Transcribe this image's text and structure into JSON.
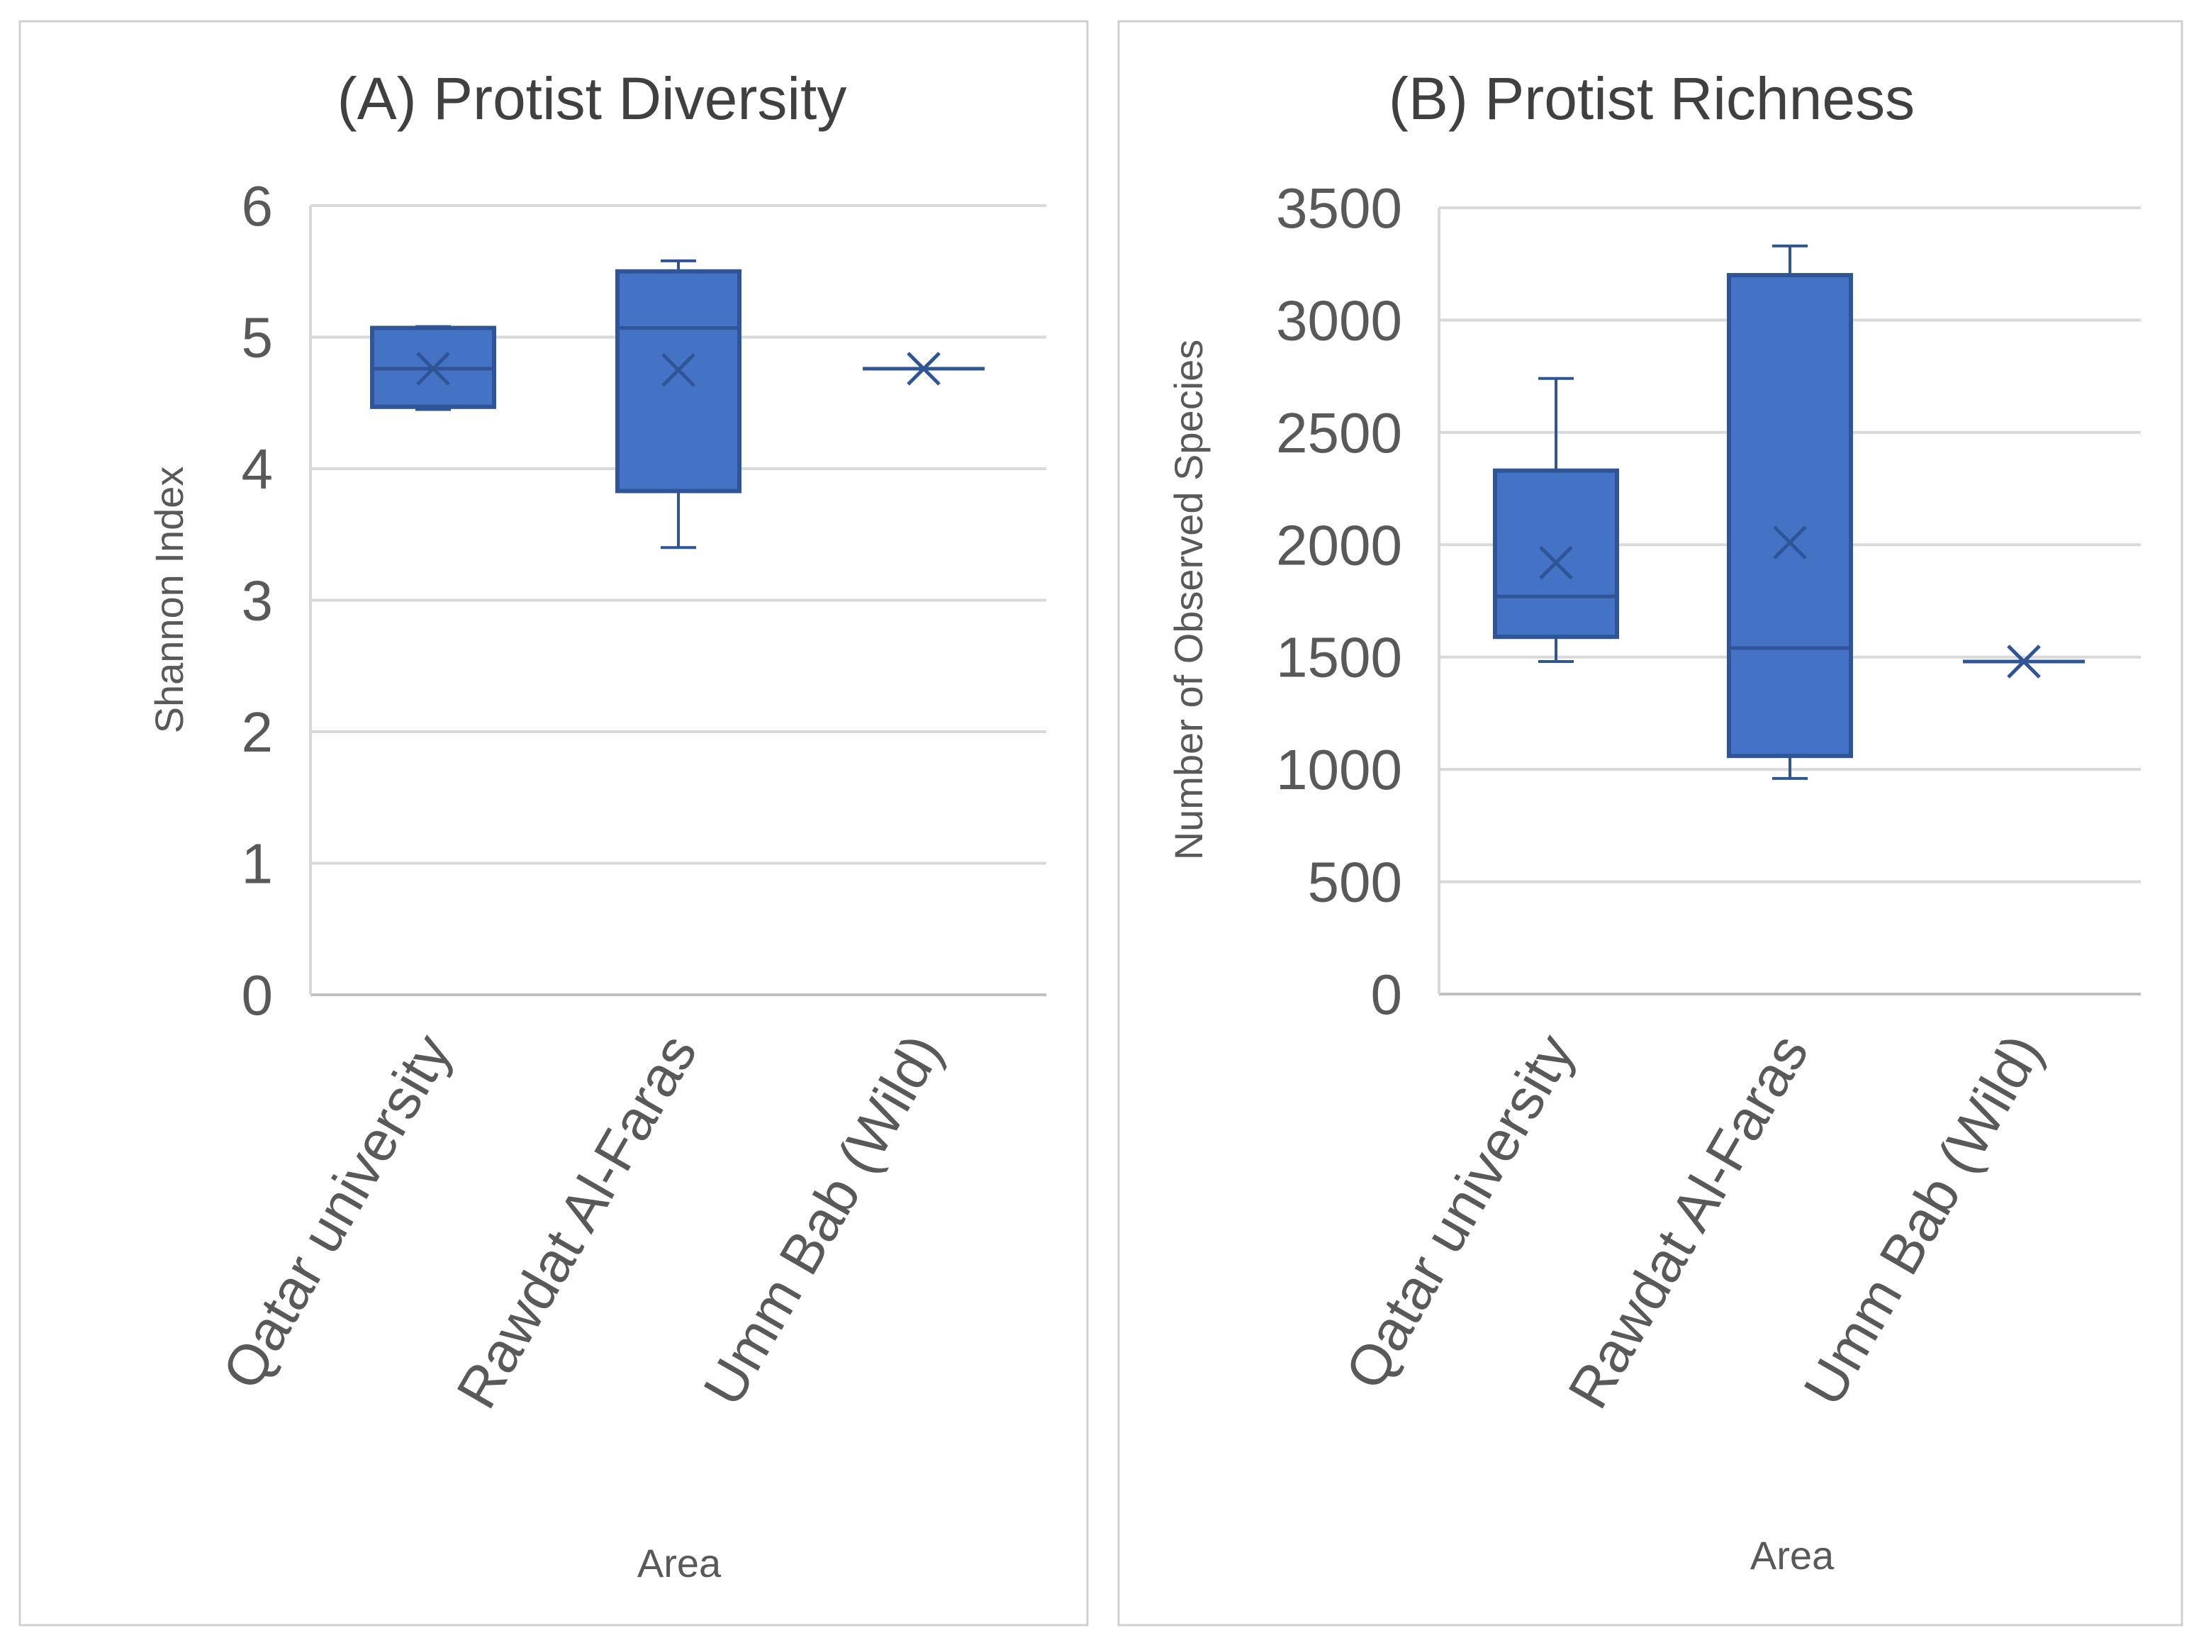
{
  "figure": {
    "accent": "#4472c4",
    "edge": "#2f5597"
  },
  "chart_data": [
    {
      "type": "box",
      "title": "(A) Protist Diversity",
      "xlabel": "Area",
      "ylabel": "Shannon Index",
      "ylim": [
        0,
        6
      ],
      "yticks": [
        0,
        1,
        2,
        3,
        4,
        5,
        6
      ],
      "grid": true,
      "categories": [
        "Qatar university",
        "Rawdat Al-Faras",
        "Umm Bab (Wild)"
      ],
      "boxes": [
        {
          "category": "Qatar university",
          "min": 4.45,
          "q1": 4.47,
          "median": 4.76,
          "q3": 5.07,
          "max": 5.08,
          "mean": 4.76
        },
        {
          "category": "Rawdat Al-Faras",
          "min": 3.4,
          "q1": 3.83,
          "median": 5.07,
          "q3": 5.5,
          "max": 5.58,
          "mean": 4.75
        },
        {
          "category": "Umm Bab (Wild)",
          "min": 4.76,
          "q1": 4.76,
          "median": 4.76,
          "q3": 4.76,
          "max": 4.76,
          "mean": 4.76
        }
      ]
    },
    {
      "type": "box",
      "title": "(B) Protist Richness",
      "xlabel": "Area",
      "ylabel": "Number of Observed Species",
      "ylim": [
        0,
        3500
      ],
      "yticks": [
        0,
        500,
        1000,
        1500,
        2000,
        2500,
        3000,
        3500
      ],
      "grid": true,
      "categories": [
        "Qatar university",
        "Rawdat Al-Faras",
        "Umm Bab (Wild)"
      ],
      "boxes": [
        {
          "category": "Qatar university",
          "min": 1480,
          "q1": 1590,
          "median": 1770,
          "q3": 2330,
          "max": 2740,
          "mean": 1920
        },
        {
          "category": "Rawdat Al-Faras",
          "min": 960,
          "q1": 1060,
          "median": 1540,
          "q3": 3200,
          "max": 3330,
          "mean": 2010
        },
        {
          "category": "Umm Bab (Wild)",
          "min": 1480,
          "q1": 1480,
          "median": 1480,
          "q3": 1480,
          "max": 1480,
          "mean": 1480
        }
      ]
    }
  ]
}
